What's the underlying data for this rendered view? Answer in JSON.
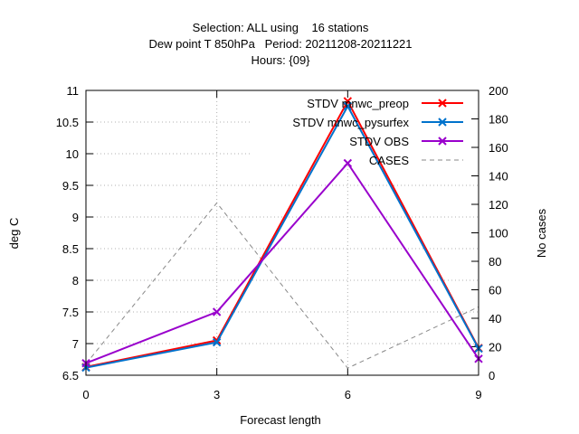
{
  "title_lines": [
    "Selection: ALL using    16 stations",
    "Dew point T 850hPa   Period: 20211208-20211221",
    "Hours: {09}"
  ],
  "chart_data": {
    "type": "line",
    "xlabel": "Forecast length",
    "ylabel": "deg C",
    "y2label": "No cases",
    "x": [
      0,
      3,
      6,
      9
    ],
    "xlim": [
      0,
      9
    ],
    "ylim": [
      6.5,
      11
    ],
    "y2lim": [
      0,
      200
    ],
    "xticks": [
      0,
      3,
      6,
      9
    ],
    "yticks": [
      6.5,
      7,
      7.5,
      8,
      8.5,
      9,
      9.5,
      10,
      10.5,
      11
    ],
    "y2ticks": [
      0,
      20,
      40,
      60,
      80,
      100,
      120,
      140,
      160,
      180,
      200
    ],
    "grid": true,
    "legend_position": "top-right",
    "series": [
      {
        "name": "STDV mnwc_preop",
        "axis": "left",
        "color": "#ff0000",
        "marker": "x",
        "values": [
          6.63,
          7.05,
          10.83,
          6.93
        ]
      },
      {
        "name": "STDV mnwc_pysurfex",
        "axis": "left",
        "color": "#0072cc",
        "marker": "x",
        "values": [
          6.62,
          7.02,
          10.75,
          6.92
        ]
      },
      {
        "name": "STDV OBS",
        "axis": "left",
        "color": "#9900cc",
        "marker": "x",
        "values": [
          6.69,
          7.5,
          9.85,
          6.76
        ]
      },
      {
        "name": "CASES",
        "axis": "right",
        "color": "#888888",
        "dashed": true,
        "values": [
          8,
          121,
          5,
          48
        ]
      }
    ]
  }
}
